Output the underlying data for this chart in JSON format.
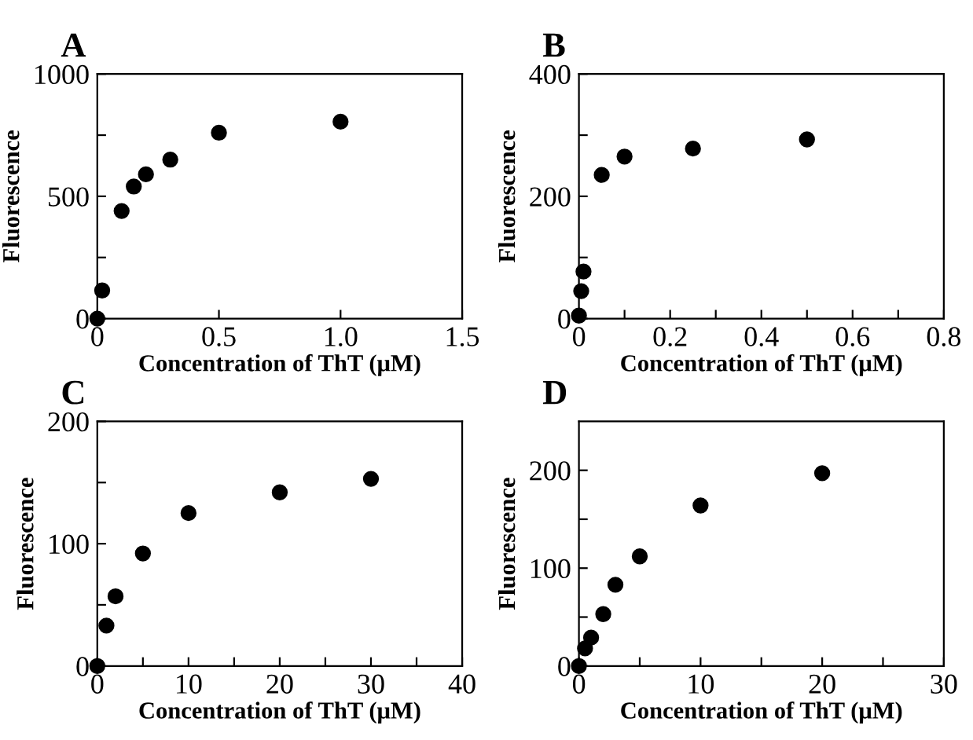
{
  "chart_data": [
    {
      "type": "scatter",
      "title": "A",
      "xlabel": "Concentration of ThT (μM)",
      "ylabel": "Fluorescence",
      "marker": "circle",
      "grid": false,
      "legend": false,
      "series": [
        {
          "color": "#000000",
          "x": [
            0,
            0.02,
            0.1,
            0.15,
            0.2,
            0.3,
            0.5,
            1.0
          ],
          "values": [
            0,
            115,
            440,
            540,
            590,
            650,
            760,
            805
          ]
        }
      ],
      "xlim": [
        0,
        1.5
      ],
      "xticks": [
        0,
        0.5,
        {
          "value": 1.0,
          "label": "1.0"
        },
        1.5
      ],
      "ylim": [
        0,
        1000
      ],
      "yticks": [
        0,
        {
          "value": 250,
          "label": null
        },
        500,
        {
          "value": 750,
          "label": null
        },
        1000
      ]
    },
    {
      "type": "scatter",
      "title": "B",
      "xlabel": "Concentration of ThT (μM)",
      "ylabel": "Fluorescence",
      "marker": "circle",
      "grid": false,
      "legend": false,
      "series": [
        {
          "color": "#000000",
          "x": [
            0,
            0.005,
            0.01,
            0.05,
            0.1,
            0.25,
            0.5
          ],
          "values": [
            5,
            45,
            77,
            235,
            265,
            278,
            293
          ]
        }
      ],
      "xlim": [
        0,
        0.8
      ],
      "xticks": [
        0,
        {
          "value": 0.1,
          "label": null
        },
        0.2,
        {
          "value": 0.3,
          "label": null
        },
        0.4,
        {
          "value": 0.5,
          "label": null
        },
        0.6,
        {
          "value": 0.7,
          "label": null
        },
        0.8
      ],
      "ylim": [
        0,
        400
      ],
      "yticks": [
        0,
        {
          "value": 100,
          "label": null
        },
        200,
        {
          "value": 300,
          "label": null
        },
        400
      ]
    },
    {
      "type": "scatter",
      "title": "C",
      "xlabel": "Concentration of ThT (μM)",
      "ylabel": "Fluorescence",
      "marker": "circle",
      "grid": false,
      "legend": false,
      "series": [
        {
          "color": "#000000",
          "x": [
            0,
            1,
            2,
            5,
            10,
            20,
            30
          ],
          "values": [
            0,
            33,
            57,
            92,
            125,
            142,
            153
          ]
        }
      ],
      "xlim": [
        0,
        40
      ],
      "xticks": [
        0,
        {
          "value": 5,
          "label": null
        },
        10,
        {
          "value": 15,
          "label": null
        },
        20,
        {
          "value": 25,
          "label": null
        },
        30,
        {
          "value": 35,
          "label": null
        },
        40
      ],
      "ylim": [
        0,
        200
      ],
      "yticks": [
        0,
        {
          "value": 50,
          "label": null
        },
        100,
        {
          "value": 150,
          "label": null
        },
        200
      ]
    },
    {
      "type": "scatter",
      "title": "D",
      "xlabel": "Concentration of ThT (μM)",
      "ylabel": "Fluorescence",
      "marker": "circle",
      "grid": false,
      "legend": false,
      "series": [
        {
          "color": "#000000",
          "x": [
            0,
            0.5,
            1,
            2,
            3,
            5,
            10,
            20
          ],
          "values": [
            0,
            18,
            29,
            53,
            83,
            112,
            164,
            197
          ]
        }
      ],
      "xlim": [
        0,
        30
      ],
      "xticks": [
        0,
        {
          "value": 5,
          "label": null
        },
        10,
        {
          "value": 15,
          "label": null
        },
        20,
        {
          "value": 25,
          "label": null
        },
        30
      ],
      "ylim": [
        0,
        250
      ],
      "yticks": [
        0,
        {
          "value": 50,
          "label": null
        },
        100,
        {
          "value": 150,
          "label": null
        },
        200
      ]
    }
  ]
}
